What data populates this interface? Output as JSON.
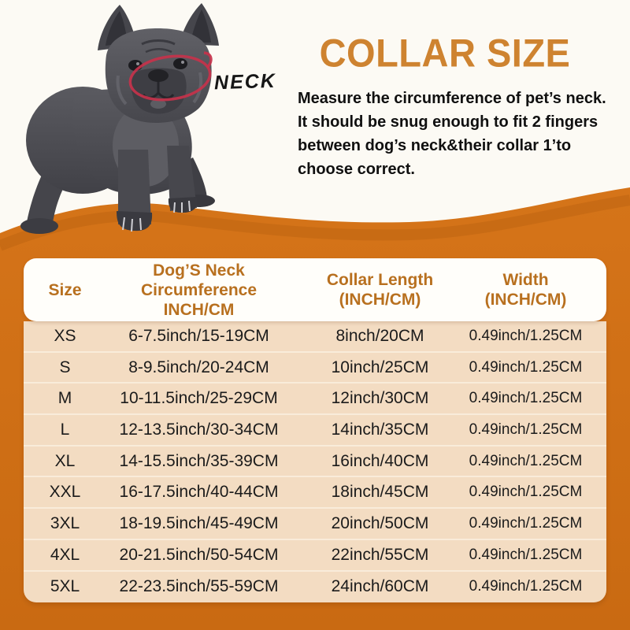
{
  "page": {
    "background_color": "#fcfaf4",
    "accent_orange": "#d07016"
  },
  "hero": {
    "title": "COLLAR SIZE",
    "title_color": "#ce8330",
    "neck_label": "NECK",
    "neck_ring_color": "#c6324b",
    "dog_image": "gray-french-bulldog-standing",
    "description_lines": [
      "Measure the circumference of pet’s neck.",
      "It should be snug enough to fit 2 fingers",
      "between dog’s neck&their collar 1’to",
      "choose correct."
    ]
  },
  "table": {
    "header_text_color": "#b8701f",
    "row_background": "#f3dcc2",
    "headers": [
      {
        "line1": "Size",
        "line2": ""
      },
      {
        "line1": "Dog’S Neck Circumference",
        "line2": "INCH/CM"
      },
      {
        "line1": "Collar Length",
        "line2": "(INCH/CM)"
      },
      {
        "line1": "Width",
        "line2": "(INCH/CM)"
      }
    ],
    "rows": [
      {
        "size": "XS",
        "neck": "6-7.5inch/15-19CM",
        "collar": "8inch/20CM",
        "width": "0.49inch/1.25CM"
      },
      {
        "size": "S",
        "neck": "8-9.5inch/20-24CM",
        "collar": "10inch/25CM",
        "width": "0.49inch/1.25CM"
      },
      {
        "size": "M",
        "neck": "10-11.5inch/25-29CM",
        "collar": "12inch/30CM",
        "width": "0.49inch/1.25CM"
      },
      {
        "size": "L",
        "neck": "12-13.5inch/30-34CM",
        "collar": "14inch/35CM",
        "width": "0.49inch/1.25CM"
      },
      {
        "size": "XL",
        "neck": "14-15.5inch/35-39CM",
        "collar": "16inch/40CM",
        "width": "0.49inch/1.25CM"
      },
      {
        "size": "XXL",
        "neck": "16-17.5inch/40-44CM",
        "collar": "18inch/45CM",
        "width": "0.49inch/1.25CM"
      },
      {
        "size": "3XL",
        "neck": "18-19.5inch/45-49CM",
        "collar": "20inch/50CM",
        "width": "0.49inch/1.25CM"
      },
      {
        "size": "4XL",
        "neck": "20-21.5inch/50-54CM",
        "collar": "22inch/55CM",
        "width": "0.49inch/1.25CM"
      },
      {
        "size": "5XL",
        "neck": "22-23.5inch/55-59CM",
        "collar": "24inch/60CM",
        "width": "0.49inch/1.25CM"
      }
    ]
  }
}
